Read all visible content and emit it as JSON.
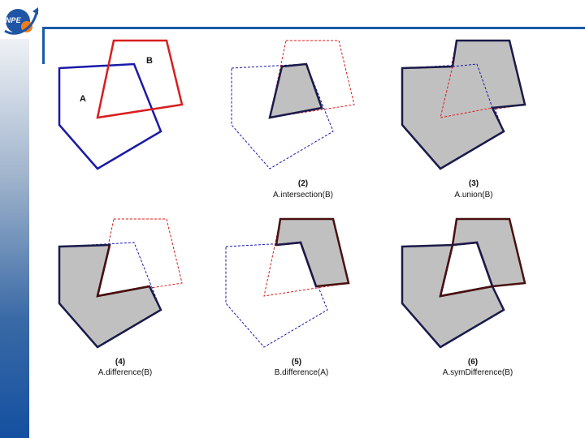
{
  "logo": {
    "text": "INPE",
    "icon": "inpe-swoosh-logo"
  },
  "colors": {
    "polygon_a": "#1a1aa8",
    "polygon_b": "#d81e1e",
    "fill": "#c0c0c0",
    "result_edge": "#4a1010",
    "accent": "#1a5aa8"
  },
  "panels": [
    {
      "num": "",
      "caption": "",
      "label_a": "A",
      "label_b": "B"
    },
    {
      "num": "(2)",
      "caption": "A.intersection(B)"
    },
    {
      "num": "(3)",
      "caption": "A.union(B)"
    },
    {
      "num": "(4)",
      "caption": "A.difference(B)"
    },
    {
      "num": "(5)",
      "caption": "B.difference(A)"
    },
    {
      "num": "(6)",
      "caption": "A.symDifference(B)"
    }
  ]
}
